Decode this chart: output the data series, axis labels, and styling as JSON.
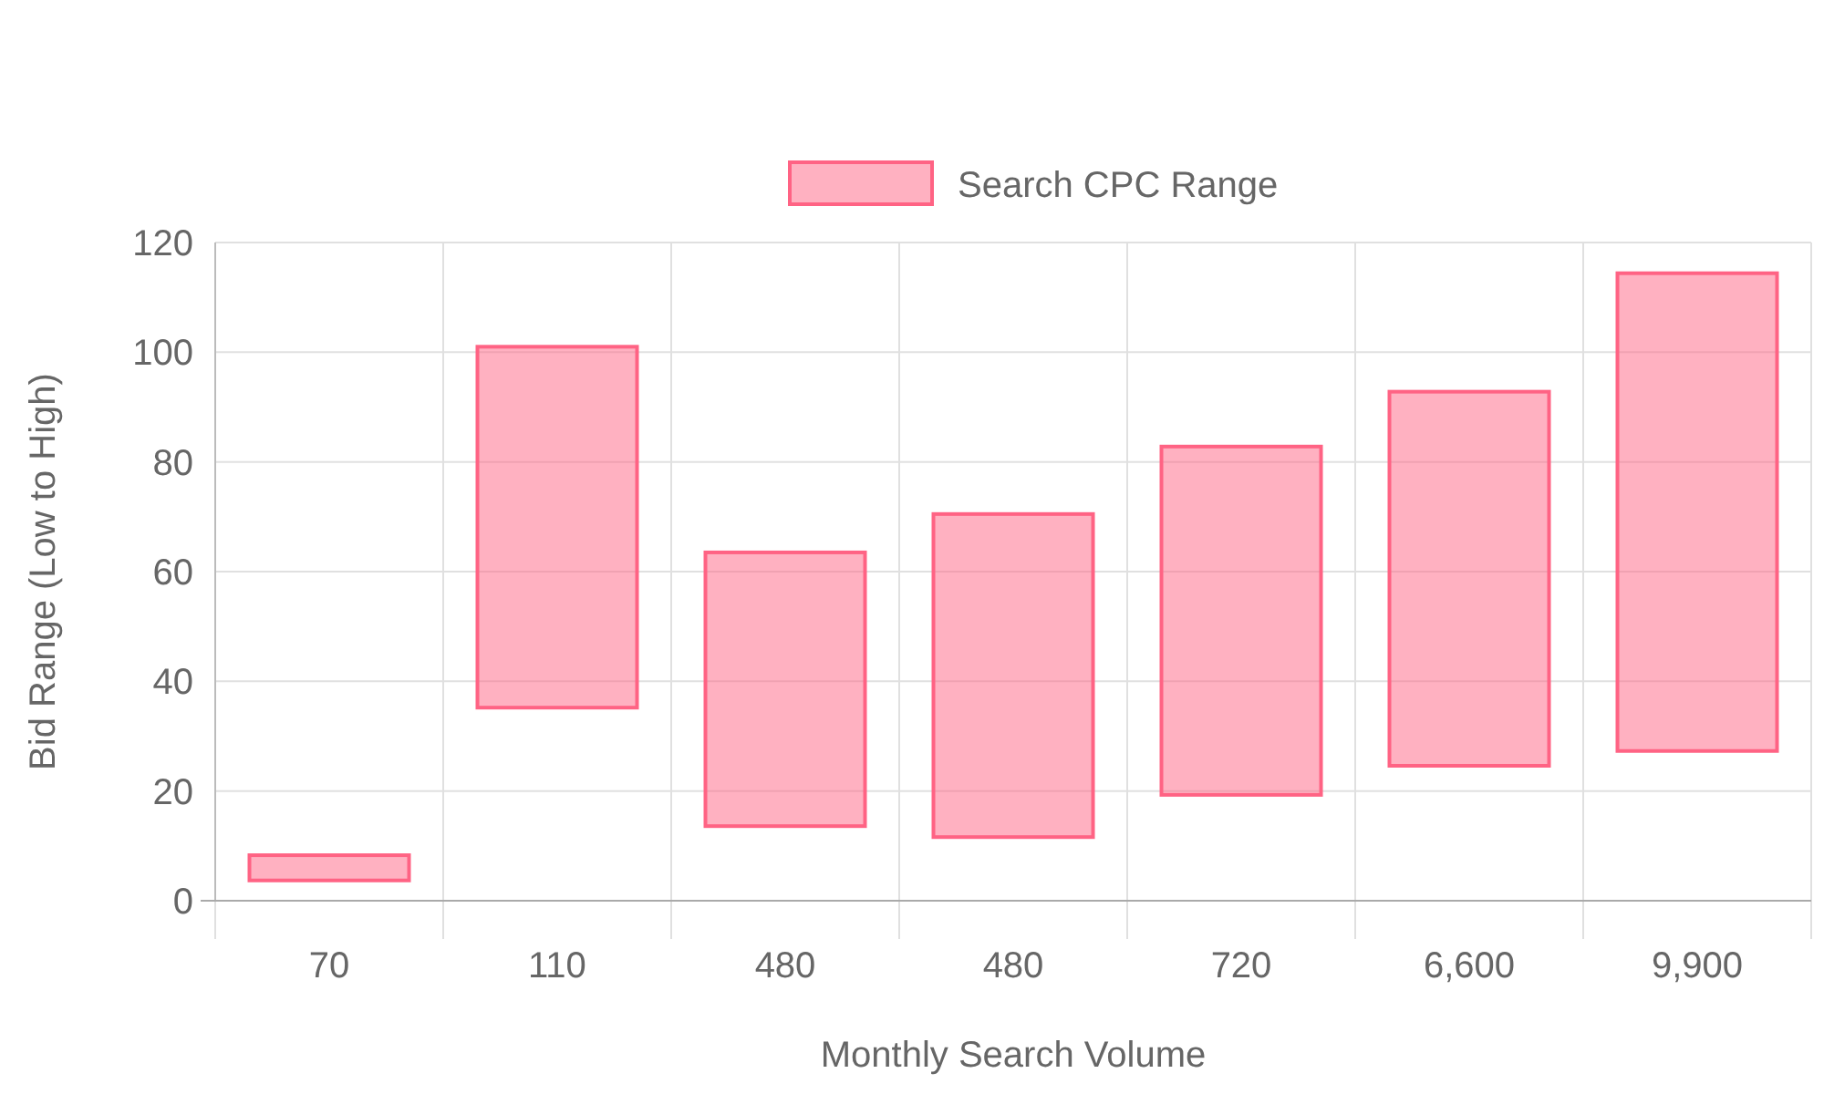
{
  "chart_data": {
    "type": "bar",
    "xlabel": "Monthly Search Volume",
    "ylabel": "Bid Range (Low to High)",
    "categories": [
      "70",
      "110",
      "480",
      "480",
      "720",
      "6,600",
      "9,900"
    ],
    "series": [
      {
        "name": "Search CPC Range",
        "color": "#ff6384",
        "values": [
          4.6,
          65.8,
          49.9,
          58.9,
          63.5,
          68.2,
          87.1
        ],
        "base": [
          3.7,
          35.2,
          13.6,
          11.6,
          19.3,
          24.6,
          27.3
        ]
      }
    ],
    "ylim": [
      0,
      120
    ],
    "yticks": [
      0,
      20,
      40,
      60,
      80,
      100,
      120
    ],
    "grid": true,
    "legend": "top"
  }
}
